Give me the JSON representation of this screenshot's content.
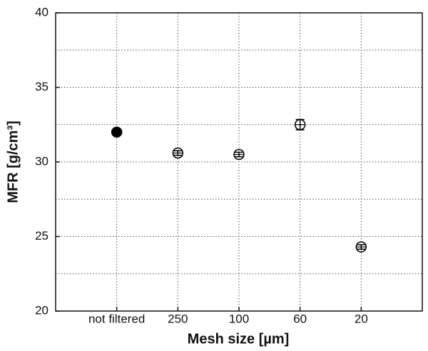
{
  "chart_data": {
    "type": "errorbar-scatter",
    "xlabel": "Mesh size [µm]",
    "ylabel": "MFR [g/cm³]",
    "categories": [
      "not filtered",
      "250",
      "100",
      "60",
      "20"
    ],
    "values": [
      32.0,
      30.6,
      30.5,
      32.5,
      24.3
    ],
    "errors": [
      null,
      0.15,
      0.15,
      0.35,
      0.15
    ],
    "markers": [
      "filled",
      "open",
      "open",
      "open",
      "open"
    ],
    "color": "#000000",
    "ylim": [
      20,
      40
    ],
    "yticks": [
      20,
      25,
      30,
      35,
      40
    ],
    "yminor": [
      22.5,
      27.5,
      32.5,
      37.5
    ],
    "grid": true
  }
}
